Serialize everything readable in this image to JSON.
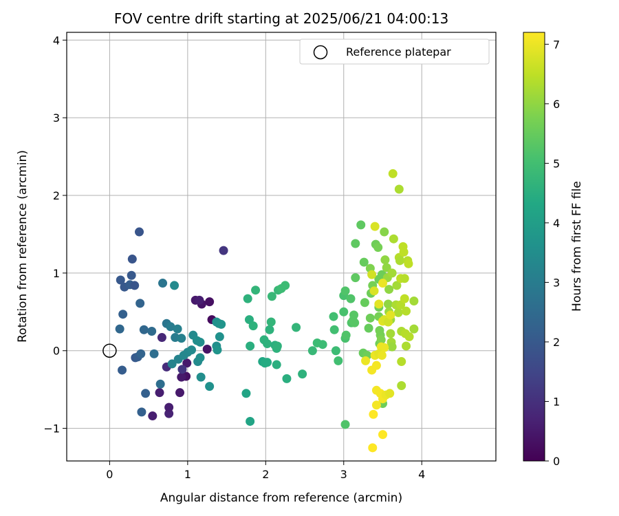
{
  "chart_data": {
    "type": "scatter",
    "title": "FOV centre drift starting at 2025/06/21 04:00:13",
    "xlabel": "Angular distance from reference (arcmin)",
    "ylabel": "Rotation from reference (arcmin)",
    "xlim": [
      -0.55,
      4.95
    ],
    "ylim": [
      -1.42,
      4.1
    ],
    "xticks": [
      "0",
      "1",
      "2",
      "3",
      "4"
    ],
    "yticks": [
      "−1",
      "0",
      "1",
      "2",
      "3",
      "4"
    ],
    "grid": true,
    "legend": {
      "placement": "top-right",
      "entries": [
        "Reference platepar"
      ]
    },
    "reference_point": {
      "x": 0,
      "y": 0,
      "name": "Reference platepar"
    },
    "colorbar": {
      "label": "Hours from first FF file",
      "min": 0,
      "max": 7.2,
      "ticks": [
        "0",
        "1",
        "2",
        "3",
        "4",
        "5",
        "6",
        "7"
      ],
      "colormap": "viridis"
    },
    "points": [
      {
        "x": 0.98,
        "y": -0.33,
        "t": 0.3
      },
      {
        "x": 0.92,
        "y": -0.34,
        "t": 0.5
      },
      {
        "x": 0.64,
        "y": -0.54,
        "t": 0.6
      },
      {
        "x": 0.76,
        "y": -0.81,
        "t": 0.7
      },
      {
        "x": 0.76,
        "y": -0.73,
        "t": 0.6
      },
      {
        "x": 0.55,
        "y": -0.84,
        "t": 0.6
      },
      {
        "x": 0.9,
        "y": -0.54,
        "t": 0.5
      },
      {
        "x": 1.18,
        "y": 0.6,
        "t": 0.4
      },
      {
        "x": 1.1,
        "y": 0.65,
        "t": 0.5
      },
      {
        "x": 1.15,
        "y": 0.65,
        "t": 0.6
      },
      {
        "x": 1.28,
        "y": 0.63,
        "t": 0.3
      },
      {
        "x": 1.31,
        "y": 0.4,
        "t": 0.2
      },
      {
        "x": 1.25,
        "y": 0.02,
        "t": 0.4
      },
      {
        "x": 0.99,
        "y": -0.16,
        "t": 0.5
      },
      {
        "x": 0.67,
        "y": 0.17,
        "t": 0.8
      },
      {
        "x": 0.73,
        "y": -0.21,
        "t": 0.9
      },
      {
        "x": 0.93,
        "y": -0.24,
        "t": 1.1
      },
      {
        "x": 1.46,
        "y": 1.29,
        "t": 1.1
      },
      {
        "x": 0.38,
        "y": 1.53,
        "t": 1.9
      },
      {
        "x": 0.29,
        "y": 1.18,
        "t": 1.9
      },
      {
        "x": 0.14,
        "y": 0.91,
        "t": 2.0
      },
      {
        "x": 0.28,
        "y": 0.97,
        "t": 2.0
      },
      {
        "x": 0.19,
        "y": 0.82,
        "t": 2.0
      },
      {
        "x": 0.26,
        "y": 0.85,
        "t": 2.1
      },
      {
        "x": 0.32,
        "y": 0.84,
        "t": 1.9
      },
      {
        "x": 0.39,
        "y": 0.61,
        "t": 2.3
      },
      {
        "x": 0.17,
        "y": 0.47,
        "t": 2.2
      },
      {
        "x": 0.13,
        "y": 0.28,
        "t": 2.4
      },
      {
        "x": 0.16,
        "y": -0.25,
        "t": 2.1
      },
      {
        "x": 0.33,
        "y": -0.09,
        "t": 2.0
      },
      {
        "x": 0.36,
        "y": -0.08,
        "t": 2.1
      },
      {
        "x": 0.4,
        "y": -0.04,
        "t": 2.3
      },
      {
        "x": 0.44,
        "y": 0.27,
        "t": 2.4
      },
      {
        "x": 0.54,
        "y": 0.25,
        "t": 2.5
      },
      {
        "x": 0.57,
        "y": -0.04,
        "t": 2.6
      },
      {
        "x": 0.46,
        "y": -0.55,
        "t": 2.2
      },
      {
        "x": 0.41,
        "y": -0.79,
        "t": 2.2
      },
      {
        "x": 0.65,
        "y": -0.43,
        "t": 2.6
      },
      {
        "x": 0.68,
        "y": 0.87,
        "t": 2.8
      },
      {
        "x": 0.73,
        "y": 0.35,
        "t": 2.8
      },
      {
        "x": 0.78,
        "y": 0.31,
        "t": 3.0
      },
      {
        "x": 0.87,
        "y": 0.28,
        "t": 3.1
      },
      {
        "x": 0.84,
        "y": 0.17,
        "t": 3.0
      },
      {
        "x": 0.92,
        "y": 0.16,
        "t": 3.1
      },
      {
        "x": 0.83,
        "y": 0.84,
        "t": 3.4
      },
      {
        "x": 0.8,
        "y": -0.17,
        "t": 3.2
      },
      {
        "x": 0.88,
        "y": -0.11,
        "t": 3.2
      },
      {
        "x": 0.95,
        "y": -0.06,
        "t": 3.3
      },
      {
        "x": 1.0,
        "y": -0.02,
        "t": 3.3
      },
      {
        "x": 1.05,
        "y": 0.01,
        "t": 3.4
      },
      {
        "x": 1.07,
        "y": 0.2,
        "t": 3.4
      },
      {
        "x": 1.12,
        "y": 0.13,
        "t": 3.5
      },
      {
        "x": 1.16,
        "y": 0.11,
        "t": 3.5
      },
      {
        "x": 1.13,
        "y": -0.14,
        "t": 3.4
      },
      {
        "x": 1.16,
        "y": -0.09,
        "t": 3.5
      },
      {
        "x": 1.17,
        "y": -0.34,
        "t": 3.5
      },
      {
        "x": 1.28,
        "y": -0.46,
        "t": 3.6
      },
      {
        "x": 1.37,
        "y": 0.37,
        "t": 3.6
      },
      {
        "x": 1.4,
        "y": 0.35,
        "t": 3.6
      },
      {
        "x": 1.43,
        "y": 0.34,
        "t": 3.7
      },
      {
        "x": 1.41,
        "y": 0.18,
        "t": 3.6
      },
      {
        "x": 1.37,
        "y": 0.06,
        "t": 3.5
      },
      {
        "x": 1.38,
        "y": 0.01,
        "t": 3.7
      },
      {
        "x": 1.75,
        "y": -0.55,
        "t": 4.2
      },
      {
        "x": 1.8,
        "y": -0.91,
        "t": 4.2
      },
      {
        "x": 1.77,
        "y": 0.67,
        "t": 4.6
      },
      {
        "x": 1.87,
        "y": 0.78,
        "t": 4.7
      },
      {
        "x": 1.79,
        "y": 0.4,
        "t": 4.5
      },
      {
        "x": 1.84,
        "y": 0.32,
        "t": 4.6
      },
      {
        "x": 1.8,
        "y": 0.06,
        "t": 4.5
      },
      {
        "x": 1.96,
        "y": -0.14,
        "t": 4.3
      },
      {
        "x": 1.99,
        "y": -0.16,
        "t": 4.4
      },
      {
        "x": 2.02,
        "y": -0.15,
        "t": 4.4
      },
      {
        "x": 1.98,
        "y": 0.14,
        "t": 4.6
      },
      {
        "x": 2.02,
        "y": 0.09,
        "t": 4.6
      },
      {
        "x": 2.05,
        "y": 0.27,
        "t": 4.6
      },
      {
        "x": 2.07,
        "y": 0.37,
        "t": 4.7
      },
      {
        "x": 2.08,
        "y": 0.7,
        "t": 4.8
      },
      {
        "x": 2.16,
        "y": 0.78,
        "t": 4.8
      },
      {
        "x": 2.2,
        "y": 0.8,
        "t": 4.9
      },
      {
        "x": 2.25,
        "y": 0.84,
        "t": 4.9
      },
      {
        "x": 2.12,
        "y": 0.07,
        "t": 4.5
      },
      {
        "x": 2.15,
        "y": 0.06,
        "t": 4.6
      },
      {
        "x": 2.14,
        "y": 0.03,
        "t": 4.6
      },
      {
        "x": 2.14,
        "y": -0.18,
        "t": 4.5
      },
      {
        "x": 2.27,
        "y": -0.36,
        "t": 4.5
      },
      {
        "x": 2.39,
        "y": 0.3,
        "t": 4.7
      },
      {
        "x": 2.47,
        "y": -0.3,
        "t": 4.6
      },
      {
        "x": 2.6,
        "y": 0.0,
        "t": 4.8
      },
      {
        "x": 2.66,
        "y": 0.1,
        "t": 4.9
      },
      {
        "x": 2.73,
        "y": 0.08,
        "t": 4.9
      },
      {
        "x": 2.87,
        "y": 0.44,
        "t": 5.0
      },
      {
        "x": 2.88,
        "y": 0.27,
        "t": 5.0
      },
      {
        "x": 2.9,
        "y": 0.0,
        "t": 4.9
      },
      {
        "x": 2.93,
        "y": -0.13,
        "t": 5.0
      },
      {
        "x": 3.0,
        "y": 0.5,
        "t": 5.1
      },
      {
        "x": 3.0,
        "y": 0.71,
        "t": 5.1
      },
      {
        "x": 3.02,
        "y": 0.77,
        "t": 5.2
      },
      {
        "x": 3.02,
        "y": 0.16,
        "t": 5.1
      },
      {
        "x": 3.03,
        "y": 0.2,
        "t": 5.2
      },
      {
        "x": 3.02,
        "y": -0.95,
        "t": 5.2
      },
      {
        "x": 3.09,
        "y": 0.67,
        "t": 5.2
      },
      {
        "x": 3.1,
        "y": 0.36,
        "t": 5.2
      },
      {
        "x": 3.12,
        "y": 0.39,
        "t": 5.3
      },
      {
        "x": 3.14,
        "y": 0.36,
        "t": 5.3
      },
      {
        "x": 3.13,
        "y": 0.46,
        "t": 5.3
      },
      {
        "x": 3.15,
        "y": 0.94,
        "t": 5.4
      },
      {
        "x": 3.15,
        "y": 1.38,
        "t": 5.4
      },
      {
        "x": 3.22,
        "y": 1.62,
        "t": 5.4
      },
      {
        "x": 3.26,
        "y": 1.14,
        "t": 5.5
      },
      {
        "x": 3.27,
        "y": 0.62,
        "t": 5.5
      },
      {
        "x": 3.25,
        "y": -0.03,
        "t": 5.5
      },
      {
        "x": 3.3,
        "y": -0.06,
        "t": 5.6
      },
      {
        "x": 3.32,
        "y": 0.29,
        "t": 5.5
      },
      {
        "x": 3.34,
        "y": 0.42,
        "t": 5.6
      },
      {
        "x": 3.35,
        "y": 0.74,
        "t": 5.6
      },
      {
        "x": 3.37,
        "y": 0.84,
        "t": 5.7
      },
      {
        "x": 3.34,
        "y": 1.06,
        "t": 5.8
      },
      {
        "x": 3.41,
        "y": 1.37,
        "t": 5.6
      },
      {
        "x": 3.44,
        "y": 1.33,
        "t": 5.7
      },
      {
        "x": 3.45,
        "y": 0.92,
        "t": 5.6
      },
      {
        "x": 3.45,
        "y": 0.56,
        "t": 5.6
      },
      {
        "x": 3.45,
        "y": 0.44,
        "t": 5.7
      },
      {
        "x": 3.46,
        "y": 0.26,
        "t": 5.7
      },
      {
        "x": 3.46,
        "y": 0.09,
        "t": 5.6
      },
      {
        "x": 3.47,
        "y": 0.2,
        "t": 5.7
      },
      {
        "x": 3.48,
        "y": 0.14,
        "t": 5.8
      },
      {
        "x": 3.49,
        "y": 0.98,
        "t": 5.6
      },
      {
        "x": 3.5,
        "y": -0.68,
        "t": 5.6
      },
      {
        "x": 3.52,
        "y": 1.53,
        "t": 5.9
      },
      {
        "x": 3.53,
        "y": 1.17,
        "t": 6.0
      },
      {
        "x": 3.55,
        "y": 1.07,
        "t": 6.0
      },
      {
        "x": 3.56,
        "y": 0.94,
        "t": 6.1
      },
      {
        "x": 3.58,
        "y": 0.79,
        "t": 6.0
      },
      {
        "x": 3.57,
        "y": 0.6,
        "t": 6.0
      },
      {
        "x": 3.58,
        "y": 0.5,
        "t": 6.1
      },
      {
        "x": 3.6,
        "y": 0.4,
        "t": 6.1
      },
      {
        "x": 3.6,
        "y": 0.22,
        "t": 6.2
      },
      {
        "x": 3.61,
        "y": 0.11,
        "t": 6.2
      },
      {
        "x": 3.62,
        "y": 0.05,
        "t": 6.1
      },
      {
        "x": 3.62,
        "y": 1.0,
        "t": 6.2
      },
      {
        "x": 3.63,
        "y": 2.28,
        "t": 6.5
      },
      {
        "x": 3.64,
        "y": 1.44,
        "t": 6.3
      },
      {
        "x": 3.67,
        "y": 0.59,
        "t": 6.3
      },
      {
        "x": 3.68,
        "y": 0.84,
        "t": 6.2
      },
      {
        "x": 3.7,
        "y": 0.49,
        "t": 6.3
      },
      {
        "x": 3.71,
        "y": 2.08,
        "t": 6.3
      },
      {
        "x": 3.71,
        "y": 1.2,
        "t": 6.4
      },
      {
        "x": 3.72,
        "y": 1.16,
        "t": 6.3
      },
      {
        "x": 3.73,
        "y": 0.93,
        "t": 6.5
      },
      {
        "x": 3.73,
        "y": 0.59,
        "t": 6.4
      },
      {
        "x": 3.74,
        "y": 0.25,
        "t": 6.3
      },
      {
        "x": 3.74,
        "y": -0.14,
        "t": 6.4
      },
      {
        "x": 3.74,
        "y": -0.45,
        "t": 6.3
      },
      {
        "x": 3.76,
        "y": 1.34,
        "t": 6.5
      },
      {
        "x": 3.77,
        "y": 1.27,
        "t": 6.5
      },
      {
        "x": 3.78,
        "y": 0.93,
        "t": 6.4
      },
      {
        "x": 3.78,
        "y": 0.67,
        "t": 6.5
      },
      {
        "x": 3.79,
        "y": 0.22,
        "t": 6.4
      },
      {
        "x": 3.8,
        "y": 0.51,
        "t": 6.4
      },
      {
        "x": 3.8,
        "y": 0.06,
        "t": 6.3
      },
      {
        "x": 3.82,
        "y": 1.16,
        "t": 6.4
      },
      {
        "x": 3.83,
        "y": 1.12,
        "t": 6.5
      },
      {
        "x": 3.84,
        "y": 0.18,
        "t": 6.4
      },
      {
        "x": 3.9,
        "y": 0.28,
        "t": 6.2
      },
      {
        "x": 3.9,
        "y": 0.64,
        "t": 6.2
      },
      {
        "x": 3.4,
        "y": 1.6,
        "t": 6.8
      },
      {
        "x": 3.36,
        "y": 0.98,
        "t": 6.7
      },
      {
        "x": 3.39,
        "y": 0.77,
        "t": 6.8
      },
      {
        "x": 3.45,
        "y": 0.6,
        "t": 6.9
      },
      {
        "x": 3.5,
        "y": 0.87,
        "t": 7.0
      },
      {
        "x": 3.5,
        "y": 0.38,
        "t": 6.9
      },
      {
        "x": 3.52,
        "y": 0.4,
        "t": 6.8
      },
      {
        "x": 3.57,
        "y": 0.37,
        "t": 6.7
      },
      {
        "x": 3.6,
        "y": 0.46,
        "t": 6.9
      },
      {
        "x": 3.48,
        "y": 0.05,
        "t": 7.0
      },
      {
        "x": 3.52,
        "y": 0.04,
        "t": 7.0
      },
      {
        "x": 3.4,
        "y": -0.06,
        "t": 7.0
      },
      {
        "x": 3.45,
        "y": -0.04,
        "t": 6.9
      },
      {
        "x": 3.49,
        "y": -0.06,
        "t": 7.0
      },
      {
        "x": 3.28,
        "y": -0.13,
        "t": 7.0
      },
      {
        "x": 3.36,
        "y": -0.25,
        "t": 7.1
      },
      {
        "x": 3.42,
        "y": -0.19,
        "t": 7.1
      },
      {
        "x": 3.42,
        "y": -0.51,
        "t": 7.1
      },
      {
        "x": 3.47,
        "y": -0.55,
        "t": 7.1
      },
      {
        "x": 3.5,
        "y": -0.62,
        "t": 7.1
      },
      {
        "x": 3.54,
        "y": -0.57,
        "t": 7.0
      },
      {
        "x": 3.59,
        "y": -0.55,
        "t": 6.9
      },
      {
        "x": 3.42,
        "y": -0.7,
        "t": 7.1
      },
      {
        "x": 3.38,
        "y": -0.82,
        "t": 7.2
      },
      {
        "x": 3.5,
        "y": -1.08,
        "t": 7.2
      },
      {
        "x": 3.37,
        "y": -1.25,
        "t": 7.2
      }
    ]
  }
}
